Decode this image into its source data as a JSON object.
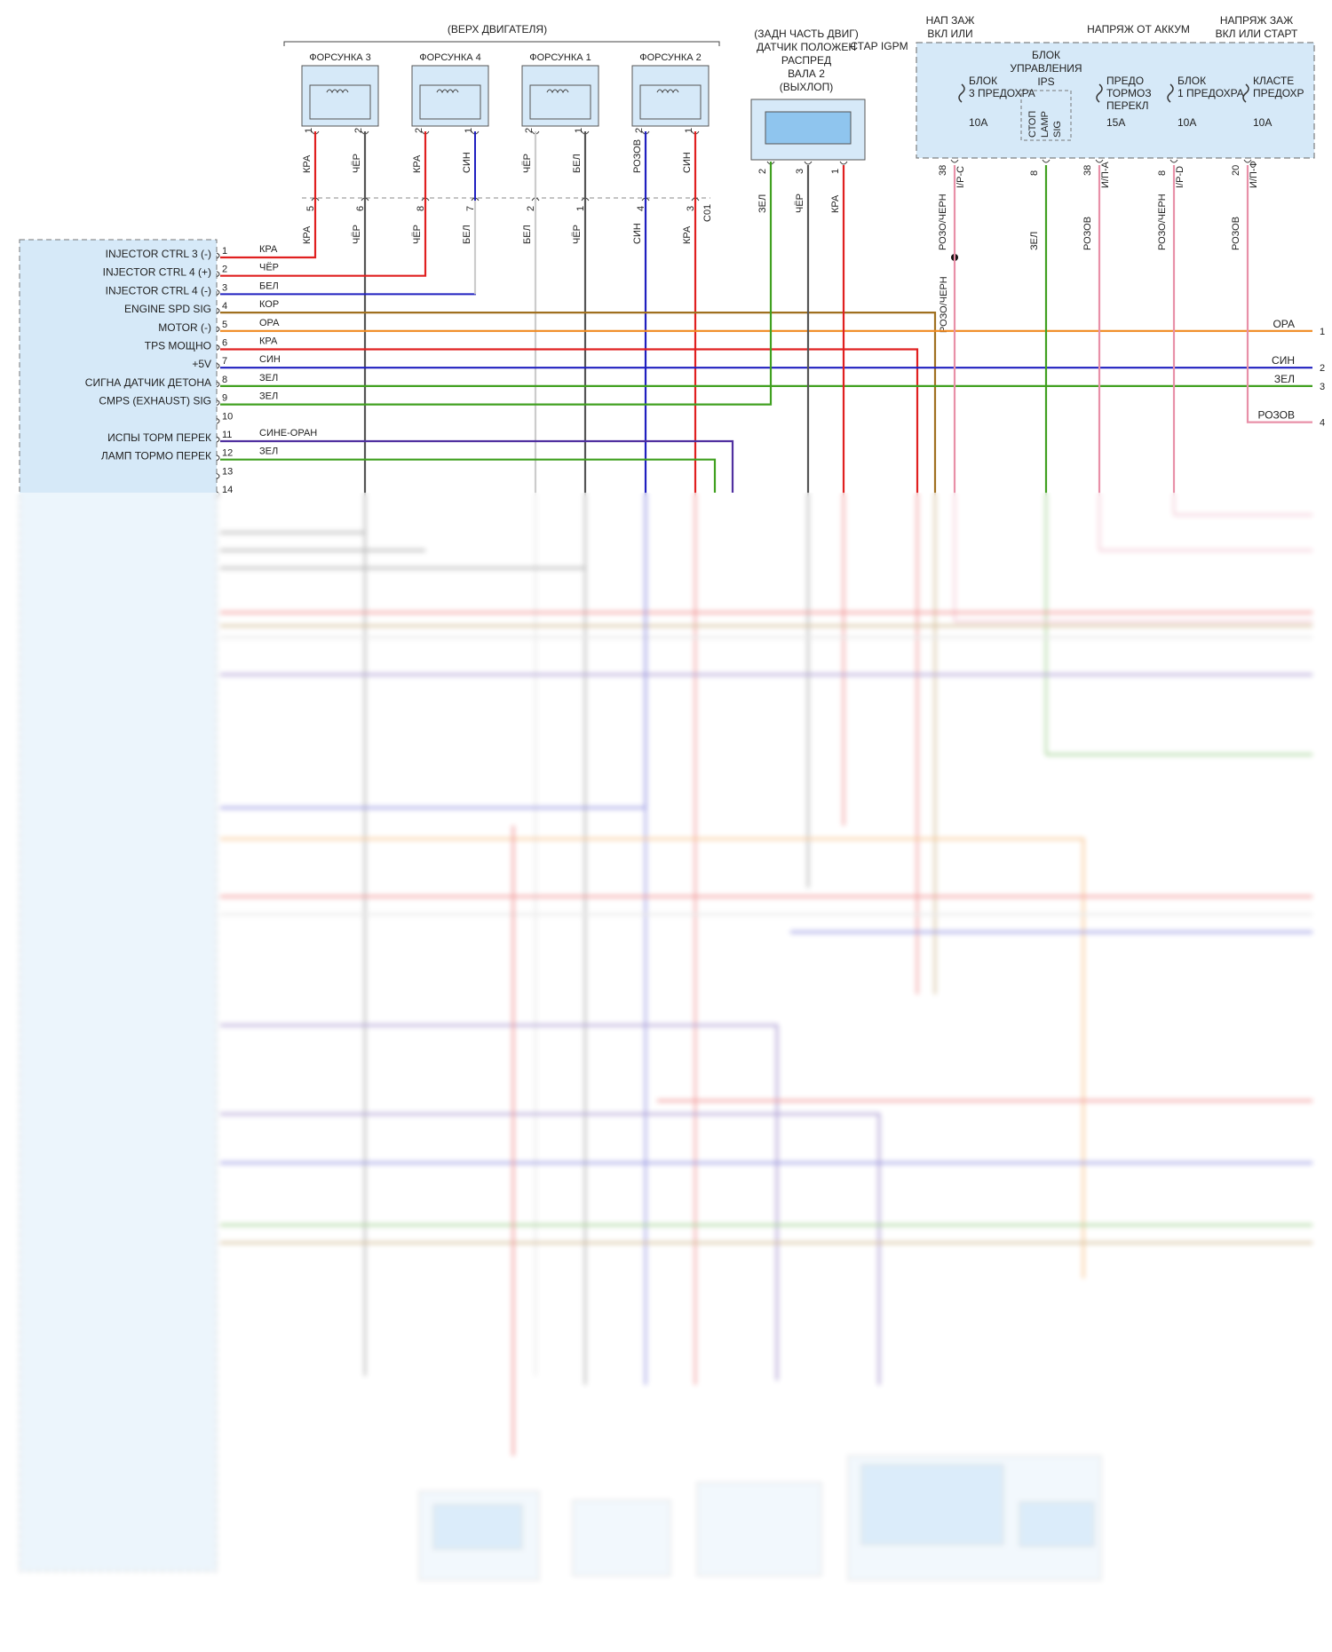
{
  "header": {
    "engine_top": "(ВЕРХ ДВИГАТЕЛЯ)",
    "camshaft_sensor": [
      "(ЗАДН ЧАСТЬ ДВИГ)",
      "ДАТЧИК ПОЛОЖЕН",
      "РАСПРЕД",
      "ВАЛА 2",
      "(ВЫХЛОП)"
    ],
    "start_igpm": "СТАР IGPM",
    "power_on_start_1": [
      "НАП ЗАЖ",
      "ВКЛ ИЛИ"
    ],
    "power_battery": "НАПРЯЖ ОТ АККУМ",
    "power_on_start_2": [
      "НАПРЯЖ ЗАЖ",
      "ВКЛ ИЛИ СТАРТ"
    ]
  },
  "injectors": [
    {
      "name": "ФОРСУНКА 3",
      "pins": [
        "1",
        "2"
      ],
      "wires": [
        "КРА",
        "ЧЁР"
      ]
    },
    {
      "name": "ФОРСУНКА 4",
      "pins": [
        "2",
        "1"
      ],
      "wires": [
        "КРА",
        "СИН"
      ]
    },
    {
      "name": "ФОРСУНКА 1",
      "pins": [
        "2",
        "1"
      ],
      "wires": [
        "ЧЁР",
        "БЕЛ"
      ]
    },
    {
      "name": "ФОРСУНКА 2",
      "pins": [
        "2",
        "1"
      ],
      "wires": [
        "РОЗОВ",
        "СИН"
      ]
    }
  ],
  "connector_c01": {
    "name": "C01",
    "pins": [
      "5",
      "6",
      "8",
      "7",
      "2",
      "1",
      "4",
      "3"
    ],
    "wires": [
      "КРА",
      "ЧЁР",
      "ЧЁР",
      "БЕЛ",
      "БЕЛ",
      "ЧЁР",
      "СИН",
      "КРА"
    ]
  },
  "camshaft_pins": {
    "pins": [
      "2",
      "3",
      "1"
    ],
    "wires": [
      "ЗЕЛ",
      "ЧЁР",
      "КРА"
    ]
  },
  "ips_block": {
    "title": [
      "БЛОК",
      "УПРАВЛЕНИЯ",
      "IPS"
    ],
    "stop_lamp": [
      "СТОП",
      "LAMP",
      "SIG"
    ],
    "fuse_3": [
      "БЛОК",
      "3 ПРЕДОХРА",
      "10A"
    ],
    "brake_switch": [
      "ПРЕДО",
      "ТОРМОЗ",
      "ПЕРЕКЛ",
      "15A"
    ],
    "fuse_1": [
      "БЛОК",
      "1 ПРЕДОХРА",
      "10A"
    ],
    "cluster": [
      "КЛАСТЕ",
      "ПРЕДОХР",
      "10A"
    ],
    "pins": [
      {
        "pin": "38",
        "conn": "I/P-C",
        "wire": "РОЗО/ЧЕРН"
      },
      {
        "pin": "8",
        "conn": "",
        "wire": "ЗЕЛ"
      },
      {
        "pin": "38",
        "conn": "И/П-А",
        "wire": "РОЗОВ"
      },
      {
        "pin": "8",
        "conn": "I/P-D",
        "wire": "РОЗО/ЧЕРН"
      },
      {
        "pin": "20",
        "conn": "И/П-Ф",
        "wire": "РОЗОВ"
      }
    ],
    "splice_wire": "РОЗО/ЧЕРН"
  },
  "ecm_rows": [
    {
      "pin": "1",
      "label": "INJECTOR CTRL 3 (-)",
      "wire": "КРА",
      "color": "#e02020"
    },
    {
      "pin": "2",
      "label": "INJECTOR CTRL 4 (+)",
      "wire": "ЧЁР",
      "color": "#555555"
    },
    {
      "pin": "3",
      "label": "INJECTOR CTRL 4 (-)",
      "wire": "БЕЛ",
      "color": "#cccccc"
    },
    {
      "pin": "4",
      "label": "ENGINE SPD SIG",
      "wire": "КОР",
      "color": "#a07020"
    },
    {
      "pin": "5",
      "label": "MOTOR (-)",
      "wire": "ОРА",
      "color": "#f08a20"
    },
    {
      "pin": "6",
      "label": "TPS МОЩНО",
      "wire": "КРА",
      "color": "#e02020"
    },
    {
      "pin": "7",
      "label": "+5V",
      "wire": "СИН",
      "color": "#2020c0"
    },
    {
      "pin": "8",
      "label": "СИГНА ДАТЧИК ДЕТОНА",
      "wire": "ЗЕЛ",
      "color": "#40a020"
    },
    {
      "pin": "9",
      "label": "CMPS (EXHAUST) SIG",
      "wire": "ЗЕЛ",
      "color": "#40a020"
    },
    {
      "pin": "10",
      "label": "",
      "wire": "",
      "color": ""
    },
    {
      "pin": "11",
      "label": "ИСПЫ ТОРМ ПЕРЕК",
      "wire": "СИНЕ-ОРАН",
      "color": "#5030a0"
    },
    {
      "pin": "12",
      "label": "ЛАМП ТОРМО ПЕРЕК",
      "wire": "ЗЕЛ",
      "color": "#40a020"
    },
    {
      "pin": "13",
      "label": "",
      "wire": "",
      "color": ""
    },
    {
      "pin": "14",
      "label": "",
      "wire": "",
      "color": ""
    }
  ],
  "right_outputs": [
    {
      "wire": "ОРА",
      "num": "1"
    },
    {
      "wire": "СИН",
      "num": "2"
    },
    {
      "wire": "ЗЕЛ",
      "num": "3"
    },
    {
      "wire": "РОЗОВ",
      "num": "4"
    }
  ],
  "colors": {
    "red": "#e02020",
    "black": "#555555",
    "white": "#cccccc",
    "brown": "#a07020",
    "orange": "#f08a20",
    "blue": "#2020c0",
    "green": "#40a020",
    "violet": "#5030a0",
    "pink": "#e890a8",
    "panel": "#d6e9f8",
    "panel_border": "#555555"
  }
}
